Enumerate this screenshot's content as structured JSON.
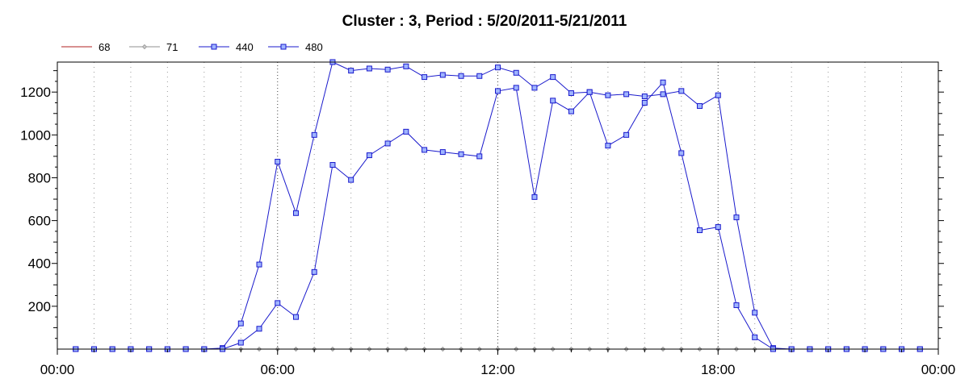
{
  "chart_data": {
    "type": "line",
    "title": "Cluster : 3, Period : 5/20/2011-5/21/2011",
    "xlabel": "",
    "ylabel": "",
    "x_ticks": [
      "00:00",
      "06:00",
      "12:00",
      "18:00",
      "00:00"
    ],
    "y_ticks": [
      200,
      400,
      600,
      800,
      1000,
      1200
    ],
    "xlim_hours": [
      0,
      24
    ],
    "ylim": [
      0,
      1340
    ],
    "grid": "vertical dotted",
    "legend_position": "top-left",
    "series": [
      {
        "name": "68",
        "color": "#b22222",
        "marker": "none",
        "x": [
          0.5,
          1.0,
          1.5,
          2.0,
          2.5,
          3.0,
          3.5,
          4.0,
          4.5,
          5.0,
          5.5,
          6.0,
          6.5,
          7.0,
          7.5,
          8.0,
          8.5,
          9.0,
          9.5,
          10.0,
          10.5,
          11.0,
          11.5,
          12.0,
          12.5,
          13.0,
          13.5,
          14.0,
          14.5,
          15.0,
          15.5,
          16.0,
          16.5,
          17.0,
          17.5,
          18.0,
          18.5,
          19.0,
          19.5,
          20.0,
          20.5,
          21.0,
          21.5,
          22.0,
          22.5,
          23.0,
          23.5
        ],
        "y": [
          0,
          0,
          0,
          0,
          0,
          0,
          0,
          0,
          0,
          0,
          0,
          0,
          0,
          0,
          0,
          0,
          0,
          0,
          0,
          0,
          0,
          0,
          0,
          0,
          0,
          0,
          0,
          0,
          0,
          0,
          0,
          0,
          0,
          0,
          0,
          0,
          0,
          0,
          0,
          0,
          0,
          0,
          0,
          0,
          0,
          0,
          0
        ]
      },
      {
        "name": "71",
        "color": "#909090",
        "marker": "diamond",
        "x": [
          0.5,
          1.0,
          1.5,
          2.0,
          2.5,
          3.0,
          3.5,
          4.0,
          4.5,
          5.0,
          5.5,
          6.0,
          6.5,
          7.0,
          7.5,
          8.0,
          8.5,
          9.0,
          9.5,
          10.0,
          10.5,
          11.0,
          11.5,
          12.0,
          12.5,
          13.0,
          13.5,
          14.0,
          14.5,
          15.0,
          15.5,
          16.0,
          16.5,
          17.0,
          17.5,
          18.0,
          18.5,
          19.0,
          19.5,
          20.0,
          20.5,
          21.0,
          21.5,
          22.0,
          22.5,
          23.0,
          23.5
        ],
        "y": [
          0,
          0,
          0,
          0,
          0,
          0,
          0,
          0,
          0,
          0,
          0,
          0,
          0,
          0,
          0,
          0,
          0,
          0,
          0,
          0,
          0,
          0,
          0,
          0,
          0,
          0,
          0,
          0,
          0,
          0,
          0,
          0,
          0,
          0,
          0,
          0,
          0,
          0,
          0,
          0,
          0,
          0,
          0,
          0,
          0,
          0,
          0
        ]
      },
      {
        "name": "440",
        "color": "#1a1acc",
        "marker": "square",
        "x": [
          0.5,
          1.0,
          1.5,
          2.0,
          2.5,
          3.0,
          3.5,
          4.0,
          4.5,
          5.0,
          5.5,
          6.0,
          6.5,
          7.0,
          7.5,
          8.0,
          8.5,
          9.0,
          9.5,
          10.0,
          10.5,
          11.0,
          11.5,
          12.0,
          12.5,
          13.0,
          13.5,
          14.0,
          14.5,
          15.0,
          15.5,
          16.0,
          16.5,
          17.0,
          17.5,
          18.0,
          18.5,
          19.0,
          19.5,
          20.0,
          20.5,
          21.0,
          21.5,
          22.0,
          22.5,
          23.0,
          23.5
        ],
        "y": [
          0,
          0,
          0,
          0,
          0,
          0,
          0,
          0,
          5,
          120,
          395,
          875,
          635,
          1000,
          1340,
          1300,
          1310,
          1305,
          1320,
          1270,
          1280,
          1275,
          1275,
          1315,
          1290,
          1220,
          1270,
          1195,
          1200,
          1185,
          1190,
          1180,
          1190,
          1205,
          1135,
          1185,
          615,
          170,
          5,
          0,
          0,
          0,
          0,
          0,
          0,
          0,
          0
        ]
      },
      {
        "name": "480",
        "color": "#1a1acc",
        "marker": "square",
        "x": [
          0.5,
          1.0,
          1.5,
          2.0,
          2.5,
          3.0,
          3.5,
          4.0,
          4.5,
          5.0,
          5.5,
          6.0,
          6.5,
          7.0,
          7.5,
          8.0,
          8.5,
          9.0,
          9.5,
          10.0,
          10.5,
          11.0,
          11.5,
          12.0,
          12.5,
          13.0,
          13.5,
          14.0,
          14.5,
          15.0,
          15.5,
          16.0,
          16.5,
          17.0,
          17.5,
          18.0,
          18.5,
          19.0,
          19.5,
          20.0,
          20.5,
          21.0,
          21.5,
          22.0,
          22.5,
          23.0,
          23.5
        ],
        "y": [
          0,
          0,
          0,
          0,
          0,
          0,
          0,
          0,
          0,
          30,
          95,
          215,
          150,
          360,
          860,
          790,
          905,
          960,
          1015,
          930,
          920,
          910,
          900,
          1205,
          1220,
          710,
          1160,
          1110,
          1200,
          950,
          1000,
          1150,
          1245,
          915,
          555,
          570,
          205,
          55,
          0,
          0,
          0,
          0,
          0,
          0,
          0,
          0,
          0
        ]
      }
    ]
  }
}
